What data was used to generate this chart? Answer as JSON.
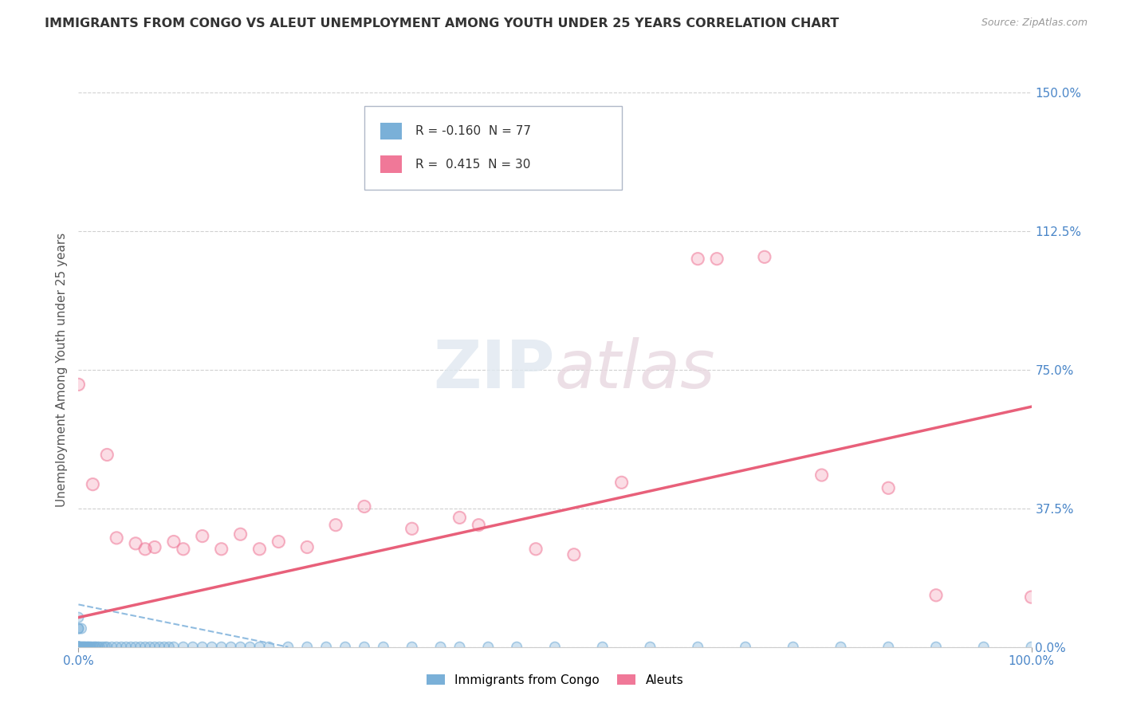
{
  "title": "IMMIGRANTS FROM CONGO VS ALEUT UNEMPLOYMENT AMONG YOUTH UNDER 25 YEARS CORRELATION CHART",
  "source": "Source: ZipAtlas.com",
  "ylabel": "Unemployment Among Youth under 25 years",
  "xlim": [
    0.0,
    1.0
  ],
  "ylim": [
    0.0,
    1.5
  ],
  "ytick_labels": [
    "0.0%",
    "37.5%",
    "75.0%",
    "112.5%",
    "150.0%"
  ],
  "ytick_values": [
    0.0,
    0.375,
    0.75,
    1.125,
    1.5
  ],
  "watermark_zip": "ZIP",
  "watermark_atlas": "atlas",
  "congo_color": "#7ab0d8",
  "aleut_color": "#f07898",
  "congo_line_color": "#90bce0",
  "aleut_line_color": "#e8607a",
  "background_color": "#ffffff",
  "grid_color": "#d0d0d0",
  "congo_scatter_x": [
    0.0,
    0.0,
    0.0,
    0.0,
    0.0,
    0.0,
    0.0,
    0.0,
    0.0,
    0.0,
    0.002,
    0.003,
    0.003,
    0.004,
    0.005,
    0.006,
    0.007,
    0.008,
    0.01,
    0.01,
    0.012,
    0.013,
    0.015,
    0.017,
    0.018,
    0.02,
    0.022,
    0.025,
    0.028,
    0.03,
    0.035,
    0.04,
    0.045,
    0.05,
    0.055,
    0.06,
    0.065,
    0.07,
    0.075,
    0.08,
    0.085,
    0.09,
    0.095,
    0.1,
    0.11,
    0.12,
    0.13,
    0.14,
    0.15,
    0.16,
    0.17,
    0.18,
    0.19,
    0.2,
    0.22,
    0.24,
    0.26,
    0.28,
    0.3,
    0.32,
    0.35,
    0.38,
    0.4,
    0.43,
    0.46,
    0.5,
    0.55,
    0.6,
    0.65,
    0.7,
    0.75,
    0.8,
    0.85,
    0.9,
    0.95,
    1.0,
    0.001,
    0.001
  ],
  "congo_scatter_y": [
    0.0,
    0.0,
    0.0,
    0.0,
    0.0,
    0.0,
    0.0,
    0.05,
    0.05,
    0.08,
    0.0,
    0.0,
    0.05,
    0.0,
    0.0,
    0.0,
    0.0,
    0.0,
    0.0,
    0.0,
    0.0,
    0.0,
    0.0,
    0.0,
    0.0,
    0.0,
    0.0,
    0.0,
    0.0,
    0.0,
    0.0,
    0.0,
    0.0,
    0.0,
    0.0,
    0.0,
    0.0,
    0.0,
    0.0,
    0.0,
    0.0,
    0.0,
    0.0,
    0.0,
    0.0,
    0.0,
    0.0,
    0.0,
    0.0,
    0.0,
    0.0,
    0.0,
    0.0,
    0.0,
    0.0,
    0.0,
    0.0,
    0.0,
    0.0,
    0.0,
    0.0,
    0.0,
    0.0,
    0.0,
    0.0,
    0.0,
    0.0,
    0.0,
    0.0,
    0.0,
    0.0,
    0.0,
    0.0,
    0.0,
    0.0,
    0.0,
    0.0,
    0.0
  ],
  "aleut_scatter_x": [
    0.0,
    0.015,
    0.03,
    0.04,
    0.06,
    0.07,
    0.08,
    0.1,
    0.11,
    0.13,
    0.15,
    0.17,
    0.19,
    0.21,
    0.24,
    0.27,
    0.3,
    0.35,
    0.4,
    0.42,
    0.48,
    0.52,
    0.57,
    0.65,
    0.67,
    0.72,
    0.78,
    0.85,
    0.9,
    1.0
  ],
  "aleut_scatter_y": [
    0.71,
    0.44,
    0.52,
    0.295,
    0.28,
    0.265,
    0.27,
    0.285,
    0.265,
    0.3,
    0.265,
    0.305,
    0.265,
    0.285,
    0.27,
    0.33,
    0.38,
    0.32,
    0.35,
    0.33,
    0.265,
    0.25,
    0.445,
    1.05,
    1.05,
    1.055,
    0.465,
    0.43,
    0.14,
    0.135
  ],
  "congo_line_x": [
    0.0,
    0.22
  ],
  "congo_line_y": [
    0.115,
    0.0
  ],
  "aleut_line_x": [
    0.0,
    1.0
  ],
  "aleut_line_y": [
    0.08,
    0.65
  ]
}
